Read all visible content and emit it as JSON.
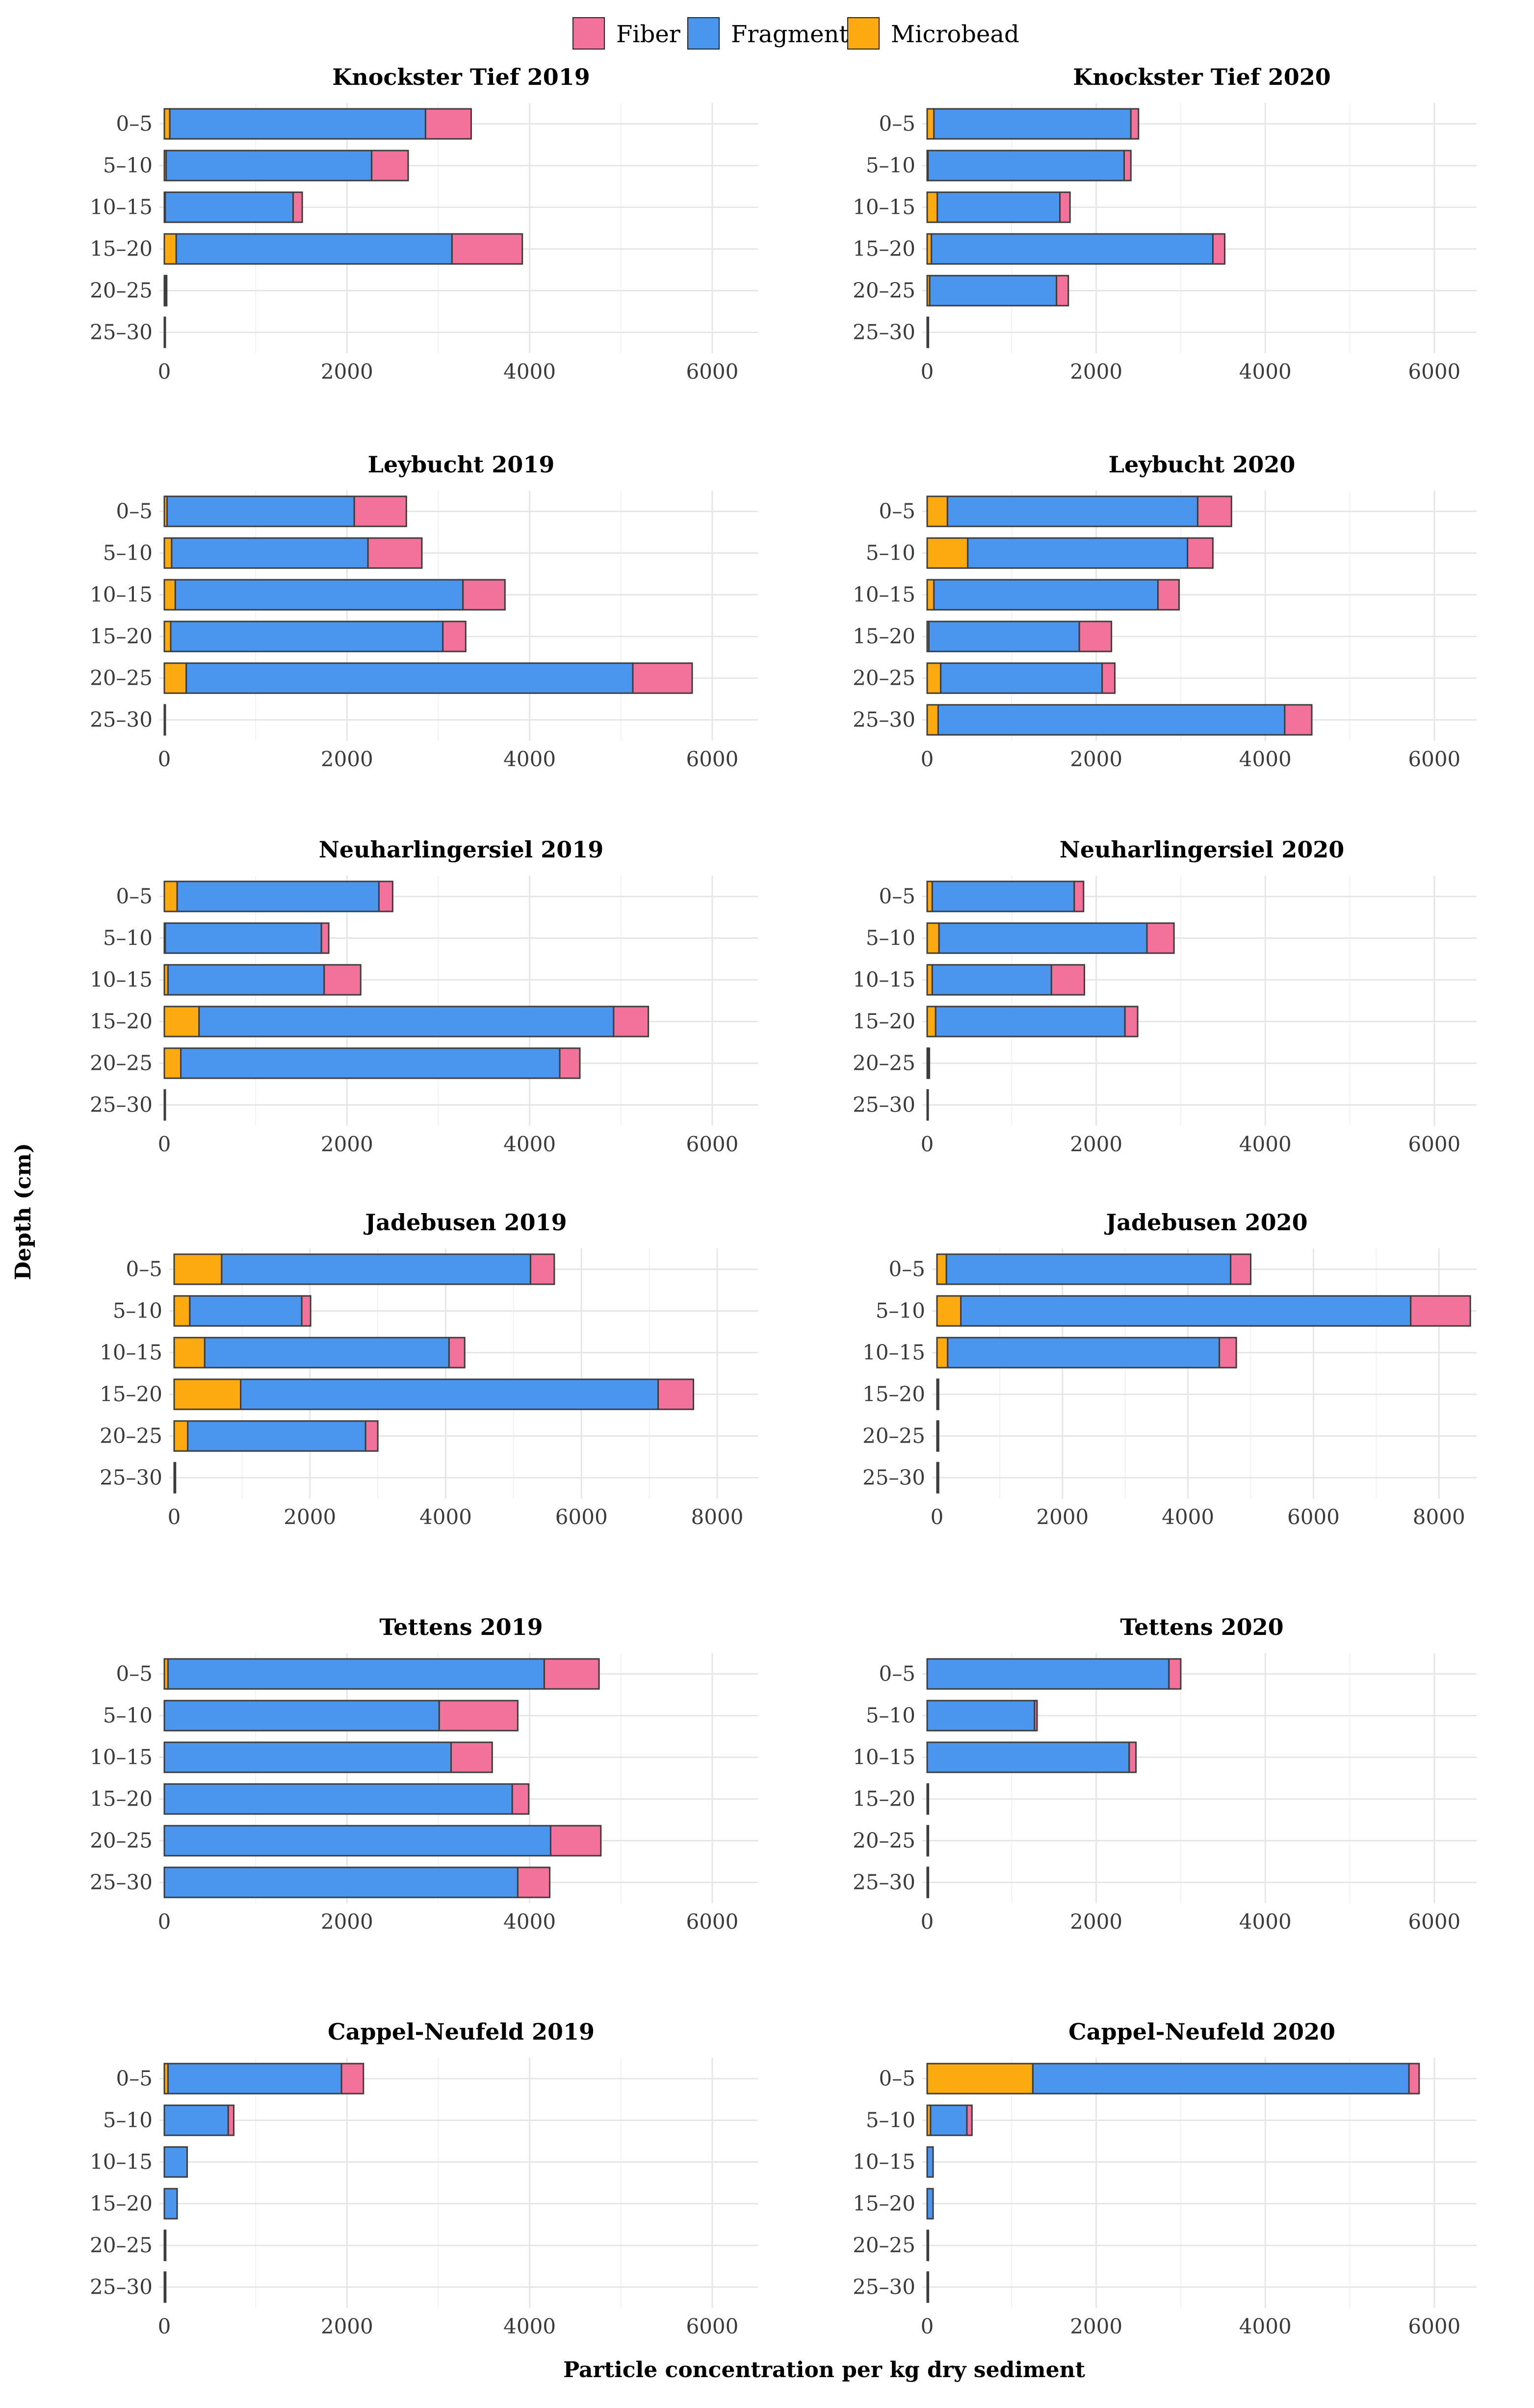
{
  "colors": {
    "Fiber": "#f3729b",
    "Fragment": "#4a96ee",
    "Microbead": "#fdaa10"
  },
  "legend": [
    "Fiber",
    "Fragment",
    "Microbead"
  ],
  "ylabel": "Depth (cm)",
  "xlabel": "Particle concentration per kg dry sediment",
  "chart_data": [
    {
      "type": "bar",
      "orientation": "horizontal",
      "stacked": true,
      "title": "Knockster Tief 2019",
      "categories": [
        "0–5",
        "5–10",
        "10–15",
        "15–20",
        "20–25",
        "25–30"
      ],
      "xlim": [
        0,
        6500
      ],
      "xticks": [
        0,
        2000,
        4000,
        6000
      ],
      "series": [
        {
          "name": "Microbead",
          "values": [
            60,
            20,
            10,
            130,
            0,
            0
          ]
        },
        {
          "name": "Fragment",
          "values": [
            2800,
            2250,
            1400,
            3020,
            15,
            10
          ]
        },
        {
          "name": "Fiber",
          "values": [
            500,
            400,
            100,
            770,
            5,
            0
          ]
        }
      ]
    },
    {
      "type": "bar",
      "orientation": "horizontal",
      "stacked": true,
      "title": "Knockster Tief 2020",
      "categories": [
        "0–5",
        "5–10",
        "10–15",
        "15–20",
        "20–25",
        "25–30"
      ],
      "xlim": [
        0,
        6500
      ],
      "xticks": [
        0,
        2000,
        4000,
        6000
      ],
      "series": [
        {
          "name": "Microbead",
          "values": [
            80,
            10,
            120,
            50,
            30,
            0
          ]
        },
        {
          "name": "Fragment",
          "values": [
            2330,
            2320,
            1450,
            3330,
            1500,
            15
          ]
        },
        {
          "name": "Fiber",
          "values": [
            90,
            80,
            120,
            140,
            140,
            0
          ]
        }
      ]
    },
    {
      "type": "bar",
      "orientation": "horizontal",
      "stacked": true,
      "title": "Leybucht 2019",
      "categories": [
        "0–5",
        "5–10",
        "10–15",
        "15–20",
        "20–25",
        "25–30"
      ],
      "xlim": [
        0,
        6500
      ],
      "xticks": [
        0,
        2000,
        4000,
        6000
      ],
      "series": [
        {
          "name": "Microbead",
          "values": [
            30,
            80,
            120,
            70,
            240,
            0
          ]
        },
        {
          "name": "Fragment",
          "values": [
            2050,
            2150,
            3150,
            2980,
            4890,
            10
          ]
        },
        {
          "name": "Fiber",
          "values": [
            570,
            590,
            460,
            250,
            650,
            0
          ]
        }
      ]
    },
    {
      "type": "bar",
      "orientation": "horizontal",
      "stacked": true,
      "title": "Leybucht 2020",
      "categories": [
        "0–5",
        "5–10",
        "10–15",
        "15–20",
        "20–25",
        "25–30"
      ],
      "xlim": [
        0,
        6500
      ],
      "xticks": [
        0,
        2000,
        4000,
        6000
      ],
      "series": [
        {
          "name": "Microbead",
          "values": [
            240,
            480,
            80,
            20,
            160,
            130
          ]
        },
        {
          "name": "Fragment",
          "values": [
            2960,
            2600,
            2650,
            1780,
            1910,
            4100
          ]
        },
        {
          "name": "Fiber",
          "values": [
            400,
            300,
            250,
            380,
            150,
            320
          ]
        }
      ]
    },
    {
      "type": "bar",
      "orientation": "horizontal",
      "stacked": true,
      "title": "Neuharlingersiel 2019",
      "categories": [
        "0–5",
        "5–10",
        "10–15",
        "15–20",
        "20–25",
        "25–30"
      ],
      "xlim": [
        0,
        6500
      ],
      "xticks": [
        0,
        2000,
        4000,
        6000
      ],
      "series": [
        {
          "name": "Microbead",
          "values": [
            140,
            10,
            40,
            380,
            180,
            0
          ]
        },
        {
          "name": "Fragment",
          "values": [
            2210,
            1710,
            1710,
            4540,
            4150,
            10
          ]
        },
        {
          "name": "Fiber",
          "values": [
            150,
            80,
            400,
            380,
            220,
            0
          ]
        }
      ]
    },
    {
      "type": "bar",
      "orientation": "horizontal",
      "stacked": true,
      "title": "Neuharlingersiel 2020",
      "categories": [
        "0–5",
        "5–10",
        "10–15",
        "15–20",
        "20–25",
        "25–30"
      ],
      "xlim": [
        0,
        6500
      ],
      "xticks": [
        0,
        2000,
        4000,
        6000
      ],
      "series": [
        {
          "name": "Microbead",
          "values": [
            60,
            140,
            60,
            100,
            15,
            0
          ]
        },
        {
          "name": "Fragment",
          "values": [
            1680,
            2460,
            1410,
            2240,
            10,
            10
          ]
        },
        {
          "name": "Fiber",
          "values": [
            110,
            320,
            390,
            150,
            0,
            0
          ]
        }
      ]
    },
    {
      "type": "bar",
      "orientation": "horizontal",
      "stacked": true,
      "title": "Jadebusen 2019",
      "categories": [
        "0–5",
        "5–10",
        "10–15",
        "15–20",
        "20–25",
        "25–30"
      ],
      "xlim": [
        0,
        8600
      ],
      "xticks": [
        0,
        2000,
        4000,
        6000,
        8000
      ],
      "series": [
        {
          "name": "Microbead",
          "values": [
            700,
            230,
            450,
            980,
            200,
            0
          ]
        },
        {
          "name": "Fragment",
          "values": [
            4550,
            1650,
            3600,
            6150,
            2620,
            20
          ]
        },
        {
          "name": "Fiber",
          "values": [
            350,
            130,
            230,
            520,
            180,
            0
          ]
        }
      ]
    },
    {
      "type": "bar",
      "orientation": "horizontal",
      "stacked": true,
      "title": "Jadebusen 2020",
      "categories": [
        "0–5",
        "5–10",
        "10–15",
        "15–20",
        "20–25",
        "25–30"
      ],
      "xlim": [
        0,
        8600
      ],
      "xticks": [
        0,
        2000,
        4000,
        6000,
        8000
      ],
      "series": [
        {
          "name": "Microbead",
          "values": [
            150,
            380,
            170,
            10,
            10,
            10
          ]
        },
        {
          "name": "Fragment",
          "values": [
            4530,
            7170,
            4330,
            10,
            10,
            10
          ]
        },
        {
          "name": "Fiber",
          "values": [
            320,
            950,
            270,
            0,
            0,
            0
          ]
        }
      ]
    },
    {
      "type": "bar",
      "orientation": "horizontal",
      "stacked": true,
      "title": "Tettens 2019",
      "categories": [
        "0–5",
        "5–10",
        "10–15",
        "15–20",
        "20–25",
        "25–30"
      ],
      "xlim": [
        0,
        6500
      ],
      "xticks": [
        0,
        2000,
        4000,
        6000
      ],
      "series": [
        {
          "name": "Microbead",
          "values": [
            40,
            0,
            0,
            0,
            0,
            0
          ]
        },
        {
          "name": "Fragment",
          "values": [
            4120,
            3010,
            3140,
            3810,
            4230,
            3870
          ]
        },
        {
          "name": "Fiber",
          "values": [
            600,
            860,
            450,
            180,
            550,
            350
          ]
        }
      ]
    },
    {
      "type": "bar",
      "orientation": "horizontal",
      "stacked": true,
      "title": "Tettens 2020",
      "categories": [
        "0–5",
        "5–10",
        "10–15",
        "15–20",
        "20–25",
        "25–30"
      ],
      "xlim": [
        0,
        6500
      ],
      "xticks": [
        0,
        2000,
        4000,
        6000
      ],
      "series": [
        {
          "name": "Microbead",
          "values": [
            0,
            0,
            0,
            0,
            0,
            0
          ]
        },
        {
          "name": "Fragment",
          "values": [
            2860,
            1270,
            2390,
            15,
            15,
            15
          ]
        },
        {
          "name": "Fiber",
          "values": [
            140,
            30,
            80,
            0,
            0,
            0
          ]
        }
      ]
    },
    {
      "type": "bar",
      "orientation": "horizontal",
      "stacked": true,
      "title": "Cappel-Neufeld 2019",
      "categories": [
        "0–5",
        "5–10",
        "10–15",
        "15–20",
        "20–25",
        "25–30"
      ],
      "xlim": [
        0,
        6500
      ],
      "xticks": [
        0,
        2000,
        4000,
        6000
      ],
      "series": [
        {
          "name": "Microbead",
          "values": [
            40,
            0,
            0,
            0,
            0,
            0
          ]
        },
        {
          "name": "Fragment",
          "values": [
            1900,
            700,
            250,
            140,
            15,
            15
          ]
        },
        {
          "name": "Fiber",
          "values": [
            240,
            60,
            0,
            0,
            0,
            0
          ]
        }
      ]
    },
    {
      "type": "bar",
      "orientation": "horizontal",
      "stacked": true,
      "title": "Cappel-Neufeld 2020",
      "categories": [
        "0–5",
        "5–10",
        "10–15",
        "15–20",
        "20–25",
        "25–30"
      ],
      "xlim": [
        0,
        6500
      ],
      "xticks": [
        0,
        2000,
        4000,
        6000
      ],
      "series": [
        {
          "name": "Microbead",
          "values": [
            1250,
            40,
            0,
            0,
            0,
            0
          ]
        },
        {
          "name": "Fragment",
          "values": [
            4450,
            430,
            70,
            70,
            15,
            15
          ]
        },
        {
          "name": "Fiber",
          "values": [
            120,
            60,
            0,
            0,
            0,
            0
          ]
        }
      ]
    }
  ]
}
